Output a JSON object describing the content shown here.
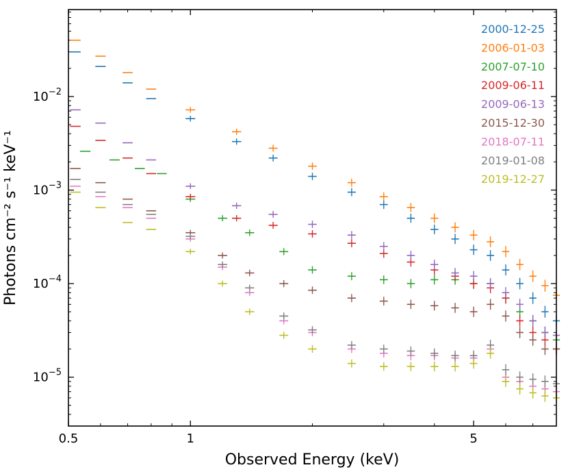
{
  "chart_data": {
    "type": "scatter",
    "title": "",
    "xlabel": "Observed Energy (keV)",
    "ylabel": "Photons cm⁻² s⁻¹ keV⁻¹",
    "xscale": "log",
    "yscale": "log",
    "xlim": [
      0.5,
      8.0
    ],
    "ylim": [
      3e-06,
      0.085
    ],
    "grid": false,
    "legend_position": "top-right",
    "x_ticks": [
      {
        "value": 0.5,
        "label": "0.5"
      },
      {
        "value": 1,
        "label": "1"
      },
      {
        "value": 5,
        "label": "5"
      }
    ],
    "y_ticks": [
      {
        "value": 1e-05,
        "base": "10",
        "exp": "−5"
      },
      {
        "value": 0.0001,
        "base": "10",
        "exp": "−4"
      },
      {
        "value": 0.001,
        "base": "10",
        "exp": "−3"
      },
      {
        "value": 0.01,
        "base": "10",
        "exp": "−2"
      }
    ],
    "series": [
      {
        "name": "2000-12-25",
        "color": "#1f77b4",
        "x": [
          0.52,
          0.6,
          0.7,
          0.8,
          1.0,
          1.3,
          1.6,
          2.0,
          2.5,
          3.0,
          3.5,
          4.0,
          4.5,
          5.0,
          5.5,
          6.0,
          6.5,
          7.0,
          7.5,
          8.0
        ],
        "y": [
          0.03,
          0.021,
          0.014,
          0.0095,
          0.0058,
          0.0033,
          0.0022,
          0.0014,
          0.00095,
          0.0007,
          0.0005,
          0.00038,
          0.0003,
          0.00023,
          0.0002,
          0.00014,
          0.0001,
          7e-05,
          5e-05,
          4e-05
        ]
      },
      {
        "name": "2006-01-03",
        "color": "#ff7f0e",
        "x": [
          0.52,
          0.6,
          0.7,
          0.8,
          1.0,
          1.3,
          1.6,
          2.0,
          2.5,
          3.0,
          3.5,
          4.0,
          4.5,
          5.0,
          5.5,
          6.0,
          6.5,
          7.0,
          7.5,
          8.0
        ],
        "y": [
          0.04,
          0.027,
          0.018,
          0.012,
          0.0072,
          0.0042,
          0.0028,
          0.0018,
          0.0012,
          0.00085,
          0.00065,
          0.0005,
          0.0004,
          0.00033,
          0.00028,
          0.00022,
          0.00016,
          0.00012,
          9.5e-05,
          7.5e-05
        ]
      },
      {
        "name": "2007-07-10",
        "color": "#2ca02c",
        "x": [
          0.55,
          0.65,
          0.75,
          0.85,
          1.0,
          1.2,
          1.4,
          1.7,
          2.0,
          2.5,
          3.0,
          3.5,
          4.0,
          4.5,
          5.0,
          5.5,
          6.0,
          6.5,
          7.0,
          7.5,
          8.0
        ],
        "y": [
          0.0026,
          0.0021,
          0.0017,
          0.0015,
          0.0008,
          0.0005,
          0.00035,
          0.00022,
          0.00014,
          0.00012,
          0.00011,
          0.0001,
          0.00011,
          0.00011,
          0.0001,
          0.0001,
          7e-05,
          5e-05,
          4e-05,
          3e-05,
          2.5e-05
        ]
      },
      {
        "name": "2009-06-11",
        "color": "#d62728",
        "x": [
          0.52,
          0.6,
          0.7,
          0.8,
          1.0,
          1.3,
          1.6,
          2.0,
          2.5,
          3.0,
          3.5,
          4.0,
          4.5,
          5.0,
          5.5,
          6.0,
          6.5,
          7.0,
          7.5,
          8.0
        ],
        "y": [
          0.0048,
          0.0034,
          0.0022,
          0.0015,
          0.00085,
          0.0005,
          0.00042,
          0.00034,
          0.00027,
          0.00021,
          0.00017,
          0.00014,
          0.00012,
          0.0001,
          9e-05,
          7e-05,
          4e-05,
          3e-05,
          2.5e-05,
          2e-05
        ]
      },
      {
        "name": "2009-06-13",
        "color": "#9467bd",
        "x": [
          0.52,
          0.6,
          0.7,
          0.8,
          1.0,
          1.3,
          1.6,
          2.0,
          2.5,
          3.0,
          3.5,
          4.0,
          4.5,
          5.0,
          5.5,
          6.0,
          6.5,
          7.0,
          7.5,
          8.0
        ],
        "y": [
          0.0072,
          0.0052,
          0.0032,
          0.0021,
          0.0011,
          0.00068,
          0.00055,
          0.00043,
          0.00033,
          0.00025,
          0.0002,
          0.00016,
          0.00013,
          0.00012,
          0.0001,
          8e-05,
          6e-05,
          4e-05,
          3e-05,
          2.8e-05
        ]
      },
      {
        "name": "2015-12-30",
        "color": "#8c564b",
        "x": [
          0.52,
          0.6,
          0.7,
          0.8,
          1.0,
          1.2,
          1.4,
          1.7,
          2.0,
          2.5,
          3.0,
          3.5,
          4.0,
          4.5,
          5.0,
          5.5,
          6.0,
          6.5,
          7.0,
          7.5,
          8.0
        ],
        "y": [
          0.0017,
          0.0012,
          0.0008,
          0.0006,
          0.00035,
          0.0002,
          0.00013,
          0.0001,
          8.5e-05,
          7e-05,
          6.5e-05,
          6e-05,
          5.8e-05,
          5.5e-05,
          5e-05,
          6e-05,
          4.5e-05,
          3e-05,
          2.5e-05,
          2e-05,
          2e-05
        ]
      },
      {
        "name": "2018-07-11",
        "color": "#e377c2",
        "x": [
          0.52,
          0.6,
          0.7,
          0.8,
          1.0,
          1.2,
          1.4,
          1.7,
          2.0,
          2.5,
          3.0,
          3.5,
          4.0,
          4.5,
          5.0,
          5.5,
          6.0,
          6.5,
          7.0,
          7.5,
          8.0
        ],
        "y": [
          0.0011,
          0.00085,
          0.00065,
          0.0005,
          0.0003,
          0.00015,
          8e-05,
          4e-05,
          3e-05,
          2e-05,
          1.8e-05,
          1.7e-05,
          1.7e-05,
          1.6e-05,
          1.6e-05,
          2e-05,
          1e-05,
          9e-06,
          8e-06,
          7.5e-06,
          7e-06
        ]
      },
      {
        "name": "2019-01-08",
        "color": "#7f7f7f",
        "x": [
          0.52,
          0.6,
          0.7,
          0.8,
          1.0,
          1.2,
          1.4,
          1.7,
          2.0,
          2.5,
          3.0,
          3.5,
          4.0,
          4.5,
          5.0,
          5.5,
          6.0,
          6.5,
          7.0,
          7.5,
          8.0
        ],
        "y": [
          0.0013,
          0.00095,
          0.0007,
          0.00055,
          0.00032,
          0.00016,
          9e-05,
          4.5e-05,
          3.2e-05,
          2.2e-05,
          2e-05,
          1.9e-05,
          1.8e-05,
          1.7e-05,
          1.7e-05,
          2.2e-05,
          1.2e-05,
          1e-05,
          9.5e-06,
          9e-06,
          8.5e-06
        ]
      },
      {
        "name": "2019-12-27",
        "color": "#bcbd22",
        "x": [
          0.52,
          0.6,
          0.7,
          0.8,
          1.0,
          1.2,
          1.4,
          1.7,
          2.0,
          2.5,
          3.0,
          3.5,
          4.0,
          4.5,
          5.0,
          5.5,
          6.0,
          6.5,
          7.0,
          7.5,
          8.0
        ],
        "y": [
          0.00095,
          0.00065,
          0.00045,
          0.00038,
          0.00022,
          0.0001,
          5e-05,
          2.8e-05,
          2e-05,
          1.4e-05,
          1.3e-05,
          1.3e-05,
          1.3e-05,
          1.3e-05,
          1.4e-05,
          1.8e-05,
          9e-06,
          7.5e-06,
          6.8e-06,
          6.3e-06,
          6e-06
        ]
      }
    ]
  }
}
